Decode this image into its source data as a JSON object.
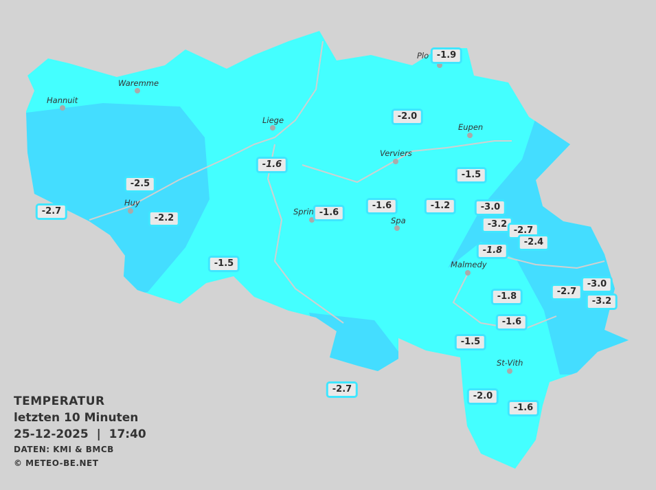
{
  "legend": {
    "title": "TEMPERATUR",
    "subtitle": "letzten 10 Minuten",
    "datetime": "25-12-2025  |  17:40",
    "source": "DATEN: KMI & BMCB",
    "copyright": "© METEO-BE.NET"
  },
  "colors": {
    "background": "#d3d3d3",
    "zone_warm": "#44ffff",
    "zone_cold": "#44ddff",
    "label_border": "#3fe6ff",
    "label_bg": "#e9e9e9"
  },
  "cities": [
    "Hannuit",
    "Waremme",
    "Liege",
    "Eupen",
    "Verviers",
    "Huy",
    "Sprin",
    "Spa",
    "Malmedy",
    "St-Vith",
    "Plo"
  ],
  "stations": [
    "-1.9",
    "-2.0",
    "-1.6",
    "-1.5",
    "-2.5",
    "-2.7",
    "-2.2",
    "-1.6",
    "-1.6",
    "-1.2",
    "-3.0",
    "-3.2",
    "-2.7",
    "-2.4",
    "-1.8",
    "-1.5",
    "-1.8",
    "-2.7",
    "-3.0",
    "-3.2",
    "-1.6",
    "-1.5",
    "-2.7",
    "-2.0",
    "-1.6"
  ]
}
